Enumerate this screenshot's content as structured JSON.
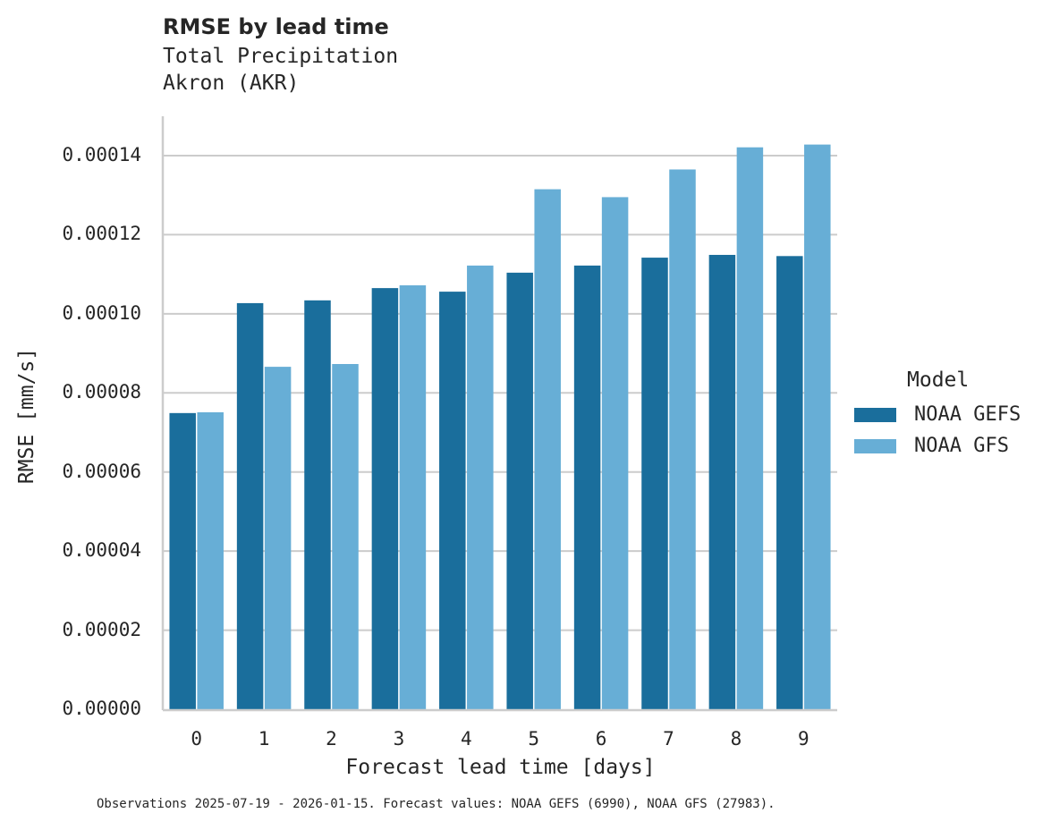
{
  "title": "RMSE by lead time",
  "subtitle_1": "Total Precipitation",
  "subtitle_2": "Akron (AKR)",
  "footer": "Observations 2025-07-19 - 2026-01-15. Forecast values: NOAA GEFS (6990), NOAA GFS (27983).",
  "colors": {
    "gefs": "#1a6e9c",
    "gfs": "#67aed6",
    "grid": "#cccccc",
    "axis": "#cccccc"
  },
  "chart_data": {
    "type": "bar",
    "title": "RMSE by lead time",
    "subtitle": [
      "Total Precipitation",
      "Akron (AKR)"
    ],
    "xlabel": "Forecast lead time [days]",
    "ylabel": "RMSE [mm/s]",
    "categories": [
      "0",
      "1",
      "2",
      "3",
      "4",
      "5",
      "6",
      "7",
      "8",
      "9"
    ],
    "yticks": [
      "0.00000",
      "0.00002",
      "0.00004",
      "0.00006",
      "0.00008",
      "0.00010",
      "0.00012",
      "0.00014"
    ],
    "ylim": [
      0,
      0.00015
    ],
    "grid": true,
    "legend": {
      "title": "Model",
      "position": "right"
    },
    "series": [
      {
        "name": "NOAA GEFS",
        "values": [
          7.49e-05,
          0.0001027,
          0.0001034,
          0.0001065,
          0.0001056,
          0.0001104,
          0.0001122,
          0.0001142,
          0.0001149,
          0.0001146
        ]
      },
      {
        "name": "NOAA GFS",
        "values": [
          7.51e-05,
          8.66e-05,
          8.73e-05,
          0.0001072,
          0.0001122,
          0.0001315,
          0.0001295,
          0.0001365,
          0.0001421,
          0.0001428
        ]
      }
    ]
  }
}
